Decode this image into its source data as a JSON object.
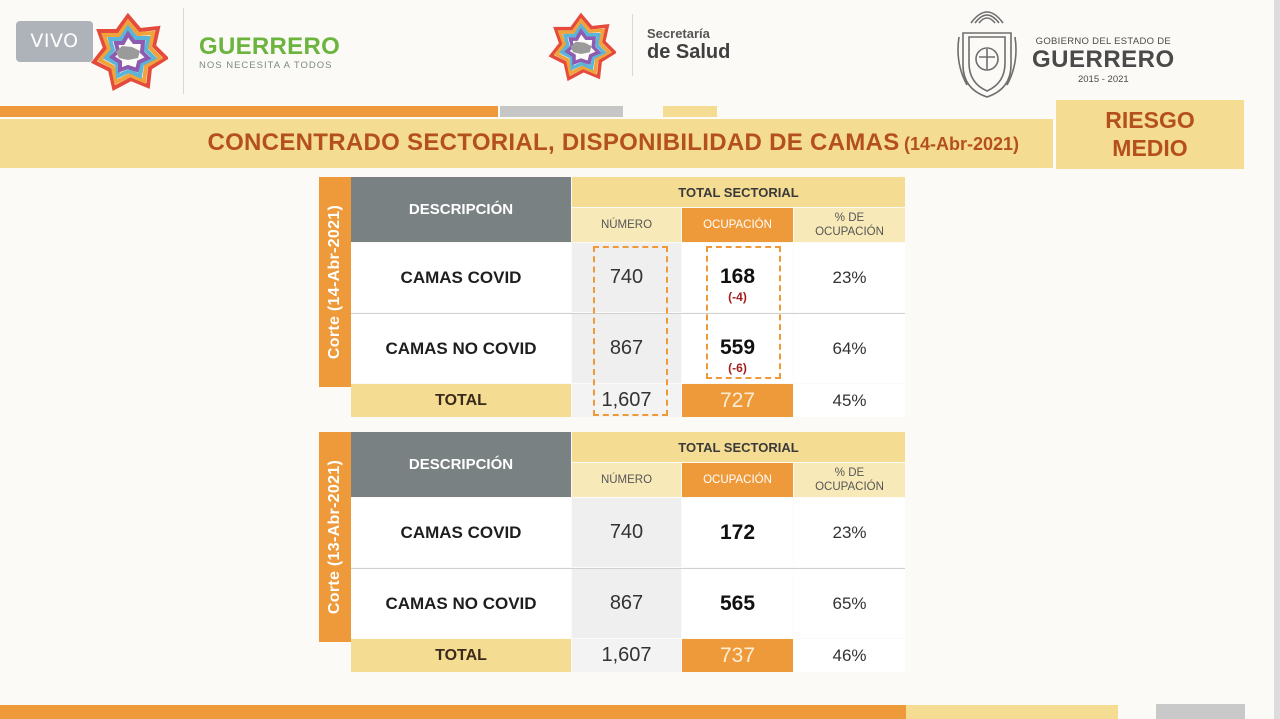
{
  "live_badge": "VIVO",
  "brand_left": {
    "name": "GUERRERO",
    "tagline": "NOS NECESITA A TODOS"
  },
  "brand_center": {
    "top": "Secretaría",
    "bottom": "de Salud"
  },
  "brand_right": {
    "top": "GOBIERNO DEL ESTADO DE",
    "name": "GUERRERO",
    "years": "2015 - 2021"
  },
  "title": {
    "main": "CONCENTRADO SECTORIAL, DISPONIBILIDAD DE CAMAS",
    "date": "(14-Abr-2021)"
  },
  "risk": {
    "line1": "RIESGO",
    "line2": "MEDIO"
  },
  "colors": {
    "orange": "#ef9a3a",
    "light_yellow": "#f5dc93",
    "title_text": "#b4501b",
    "header_gray": "#7a8182",
    "brand_green": "#6cb43e",
    "delta_red": "#a31d1d"
  },
  "tables": [
    {
      "cut_label": "Corte (14-Abr-2021)",
      "desc_header": "DESCRIPCIÓN",
      "total_header": "TOTAL SECTORIAL",
      "col_numero": "NÚMERO",
      "col_ocupacion": "OCUPACIÓN",
      "col_pct_1": "% DE",
      "col_pct_2": "OCUPACIÓN",
      "rows": [
        {
          "label": "CAMAS COVID",
          "numero": "740",
          "ocupacion": "168",
          "delta": "(-4)",
          "pct": "23%"
        },
        {
          "label": "CAMAS NO COVID",
          "numero": "867",
          "ocupacion": "559",
          "delta": "(-6)",
          "pct": "64%"
        }
      ],
      "total": {
        "label": "TOTAL",
        "numero": "1,607",
        "ocupacion": "727",
        "pct": "45%"
      }
    },
    {
      "cut_label": "Corte (13-Abr-2021)",
      "desc_header": "DESCRIPCIÓN",
      "total_header": "TOTAL SECTORIAL",
      "col_numero": "NÚMERO",
      "col_ocupacion": "OCUPACIÓN",
      "col_pct_1": "% DE",
      "col_pct_2": "OCUPACIÓN",
      "rows": [
        {
          "label": "CAMAS COVID",
          "numero": "740",
          "ocupacion": "172",
          "pct": "23%"
        },
        {
          "label": "CAMAS NO COVID",
          "numero": "867",
          "ocupacion": "565",
          "pct": "65%"
        }
      ],
      "total": {
        "label": "TOTAL",
        "numero": "1,607",
        "ocupacion": "737",
        "pct": "46%"
      }
    }
  ]
}
